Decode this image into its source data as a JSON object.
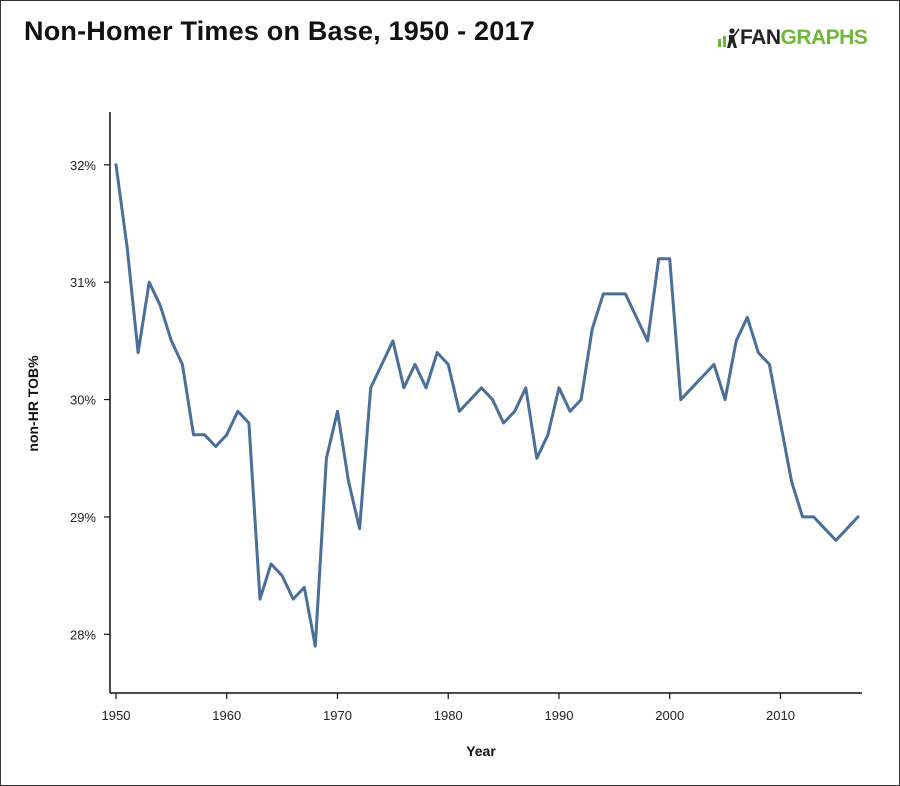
{
  "header": {
    "title": "Non-Homer Times on Base, 1950 - 2017",
    "logo_left": "FAN",
    "logo_right": "GRAPHS"
  },
  "colors": {
    "line": "#4a6f98",
    "axis": "#111111",
    "logo_green": "#6fb83a"
  },
  "chart_data": {
    "type": "line",
    "title": "Non-Homer Times on Base, 1950 - 2017",
    "xlabel": "Year",
    "ylabel": "non-HR TOB%",
    "xlim": [
      1950,
      2017
    ],
    "ylim": [
      27.5,
      32.45
    ],
    "grid": false,
    "legend": "none",
    "x_ticks": [
      1950,
      1960,
      1970,
      1980,
      1990,
      2000,
      2010
    ],
    "x_tick_labels": [
      "1950",
      "1960",
      "1970",
      "1980",
      "1990",
      "2000",
      "2010"
    ],
    "y_ticks": [
      28,
      29,
      30,
      31,
      32
    ],
    "y_tick_labels": [
      "28%",
      "29%",
      "30%",
      "31%",
      "32%"
    ],
    "series": [
      {
        "x": [
          1950,
          1951,
          1952,
          1953,
          1954,
          1955,
          1956,
          1957,
          1958,
          1959,
          1960,
          1961,
          1962,
          1963,
          1964,
          1965,
          1966,
          1967,
          1968,
          1969,
          1970,
          1971,
          1972,
          1973,
          1974,
          1975,
          1976,
          1977,
          1978,
          1979,
          1980,
          1981,
          1982,
          1983,
          1984,
          1985,
          1986,
          1987,
          1988,
          1989,
          1990,
          1991,
          1992,
          1993,
          1994,
          1995,
          1996,
          1997,
          1998,
          1999,
          2000,
          2001,
          2002,
          2003,
          2004,
          2005,
          2006,
          2007,
          2008,
          2009,
          2010,
          2011,
          2012,
          2013,
          2014,
          2015,
          2016,
          2017
        ],
        "values": [
          32.0,
          31.3,
          30.4,
          31.0,
          30.8,
          30.5,
          30.3,
          29.7,
          29.7,
          29.6,
          29.7,
          29.9,
          29.8,
          28.3,
          28.6,
          28.5,
          28.3,
          28.4,
          27.9,
          29.5,
          29.9,
          29.3,
          28.9,
          30.1,
          30.3,
          30.5,
          30.1,
          30.3,
          30.1,
          30.4,
          30.3,
          29.9,
          30.0,
          30.1,
          30.0,
          29.8,
          29.9,
          30.1,
          29.5,
          29.7,
          30.1,
          29.9,
          30.0,
          30.6,
          30.9,
          30.9,
          30.9,
          30.7,
          30.5,
          31.2,
          31.2,
          30.0,
          30.1,
          30.2,
          30.3,
          30.0,
          30.5,
          30.7,
          30.4,
          30.3,
          29.8,
          29.3,
          29.0,
          29.0,
          28.9,
          28.8,
          28.9,
          29.0
        ]
      }
    ]
  }
}
